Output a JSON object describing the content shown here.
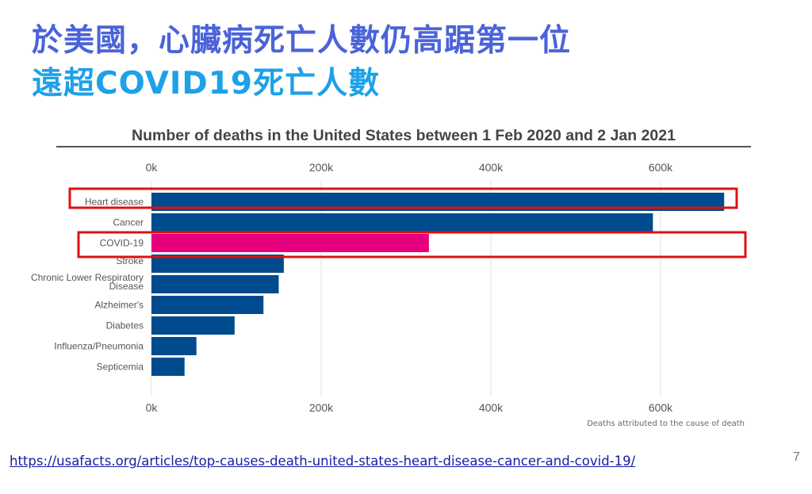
{
  "slide": {
    "title_line1": "於美國，心臟病死亡人數仍高踞第一位",
    "title_line2": "遠超COVID19死亡人數",
    "title_line1_color": "#4b63d9",
    "title_line2_color": "#1da1e8",
    "source_link": "https://usafacts.org/articles/top-causes-death-united-states-heart-disease-cancer-and-covid-19/",
    "page_number": "7"
  },
  "chart_data": {
    "type": "bar",
    "orientation": "horizontal",
    "title": "Number of deaths in the United States between 1 Feb 2020 and 2 Jan 2021",
    "xlabel": "Deaths attributed to the cause of death",
    "ylabel": "",
    "categories": [
      "Heart disease",
      "Cancer",
      "COVID-19",
      "Stroke",
      "Chronic Lower Respiratory Disease",
      "Alzheimer's",
      "Diabetes",
      "Influenza/Pneumonia",
      "Septicemia"
    ],
    "values": [
      675000,
      591000,
      327000,
      156000,
      150000,
      132000,
      98000,
      53000,
      39000
    ],
    "xlim": [
      0,
      680000
    ],
    "x_ticks": [
      0,
      200000,
      400000,
      600000
    ],
    "x_tick_labels": [
      "0k",
      "200k",
      "400k",
      "600k"
    ],
    "grid": true,
    "colors": {
      "default": "#004b8d",
      "highlight": "#e6007e",
      "annotation_box": "#e01010"
    },
    "highlighted": [
      "COVID-19"
    ],
    "annotated_boxes": [
      "Heart disease",
      "COVID-19"
    ]
  }
}
